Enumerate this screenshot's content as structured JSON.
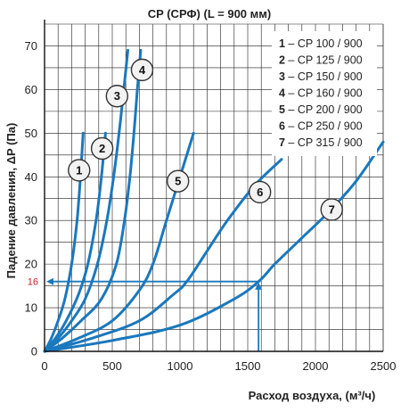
{
  "chart_data": {
    "type": "line",
    "title": "CP (СРФ) (L = 900 мм)",
    "xlabel": "Расход воздуха, (м³/ч)",
    "ylabel": "Падение давления, ΔP (Па)",
    "xlim": [
      0,
      2500
    ],
    "ylim": [
      0,
      75
    ],
    "x_ticks": [
      "0",
      "500",
      "1000",
      "1500",
      "2000",
      "2500"
    ],
    "y_ticks": [
      "0",
      "10",
      "20",
      "30",
      "40",
      "50",
      "60",
      "70"
    ],
    "x_tick_values": [
      0,
      500,
      1000,
      1500,
      2000,
      2500
    ],
    "y_tick_values": [
      0,
      10,
      20,
      30,
      40,
      50,
      60,
      70
    ],
    "grid": true,
    "legend_position": "top-right",
    "line_color": "#1a78bd",
    "reference_color": "#1a78bd",
    "reference_label_color": "#d11a2a",
    "reference": {
      "x": 1580,
      "y": 16,
      "label": "16"
    },
    "series": [
      {
        "marker": "1",
        "name": "CP 100 / 900",
        "points": [
          [
            0,
            0
          ],
          [
            50,
            3
          ],
          [
            100,
            7
          ],
          [
            150,
            12
          ],
          [
            200,
            20
          ],
          [
            240,
            30
          ],
          [
            265,
            40
          ],
          [
            285,
            50
          ]
        ],
        "marker_at": [
          255,
          41.5
        ]
      },
      {
        "marker": "2",
        "name": "CP 125 / 900",
        "points": [
          [
            0,
            0
          ],
          [
            80,
            3
          ],
          [
            160,
            7
          ],
          [
            250,
            13
          ],
          [
            320,
            20
          ],
          [
            380,
            30
          ],
          [
            420,
            40
          ],
          [
            450,
            50
          ]
        ],
        "marker_at": [
          425,
          46.5
        ]
      },
      {
        "marker": "3",
        "name": "CP 150 / 900",
        "points": [
          [
            0,
            0
          ],
          [
            100,
            3
          ],
          [
            200,
            7
          ],
          [
            300,
            12
          ],
          [
            390,
            20
          ],
          [
            460,
            30
          ],
          [
            510,
            40
          ],
          [
            550,
            50
          ],
          [
            585,
            60
          ],
          [
            615,
            69
          ]
        ],
        "marker_at": [
          535,
          58.5
        ]
      },
      {
        "marker": "4",
        "name": "CP 160 / 900",
        "points": [
          [
            0,
            0
          ],
          [
            130,
            3
          ],
          [
            270,
            7
          ],
          [
            420,
            12
          ],
          [
            530,
            20
          ],
          [
            590,
            30
          ],
          [
            630,
            40
          ],
          [
            660,
            50
          ],
          [
            685,
            60
          ],
          [
            710,
            69
          ]
        ],
        "marker_at": [
          720,
          64.5
        ]
      },
      {
        "marker": "5",
        "name": "CP 200 / 900",
        "points": [
          [
            0,
            0
          ],
          [
            250,
            3
          ],
          [
            500,
            7
          ],
          [
            700,
            14
          ],
          [
            800,
            20
          ],
          [
            900,
            30
          ],
          [
            1000,
            40
          ],
          [
            1100,
            50
          ]
        ],
        "marker_at": [
          985,
          39
        ]
      },
      {
        "marker": "6",
        "name": "CP 250 / 900",
        "points": [
          [
            0,
            0
          ],
          [
            350,
            3
          ],
          [
            700,
            7
          ],
          [
            950,
            13
          ],
          [
            1050,
            16
          ],
          [
            1200,
            23
          ],
          [
            1350,
            30
          ],
          [
            1550,
            38
          ],
          [
            1750,
            44
          ]
        ],
        "marker_at": [
          1590,
          36.5
        ]
      },
      {
        "marker": "7",
        "name": "CP 315 / 900",
        "points": [
          [
            0,
            0
          ],
          [
            500,
            2.5
          ],
          [
            1000,
            6
          ],
          [
            1400,
            12
          ],
          [
            1580,
            16
          ],
          [
            1700,
            20
          ],
          [
            1900,
            26
          ],
          [
            2100,
            32
          ],
          [
            2300,
            39
          ],
          [
            2500,
            48
          ]
        ],
        "marker_at": [
          2120,
          32.5
        ]
      }
    ]
  }
}
